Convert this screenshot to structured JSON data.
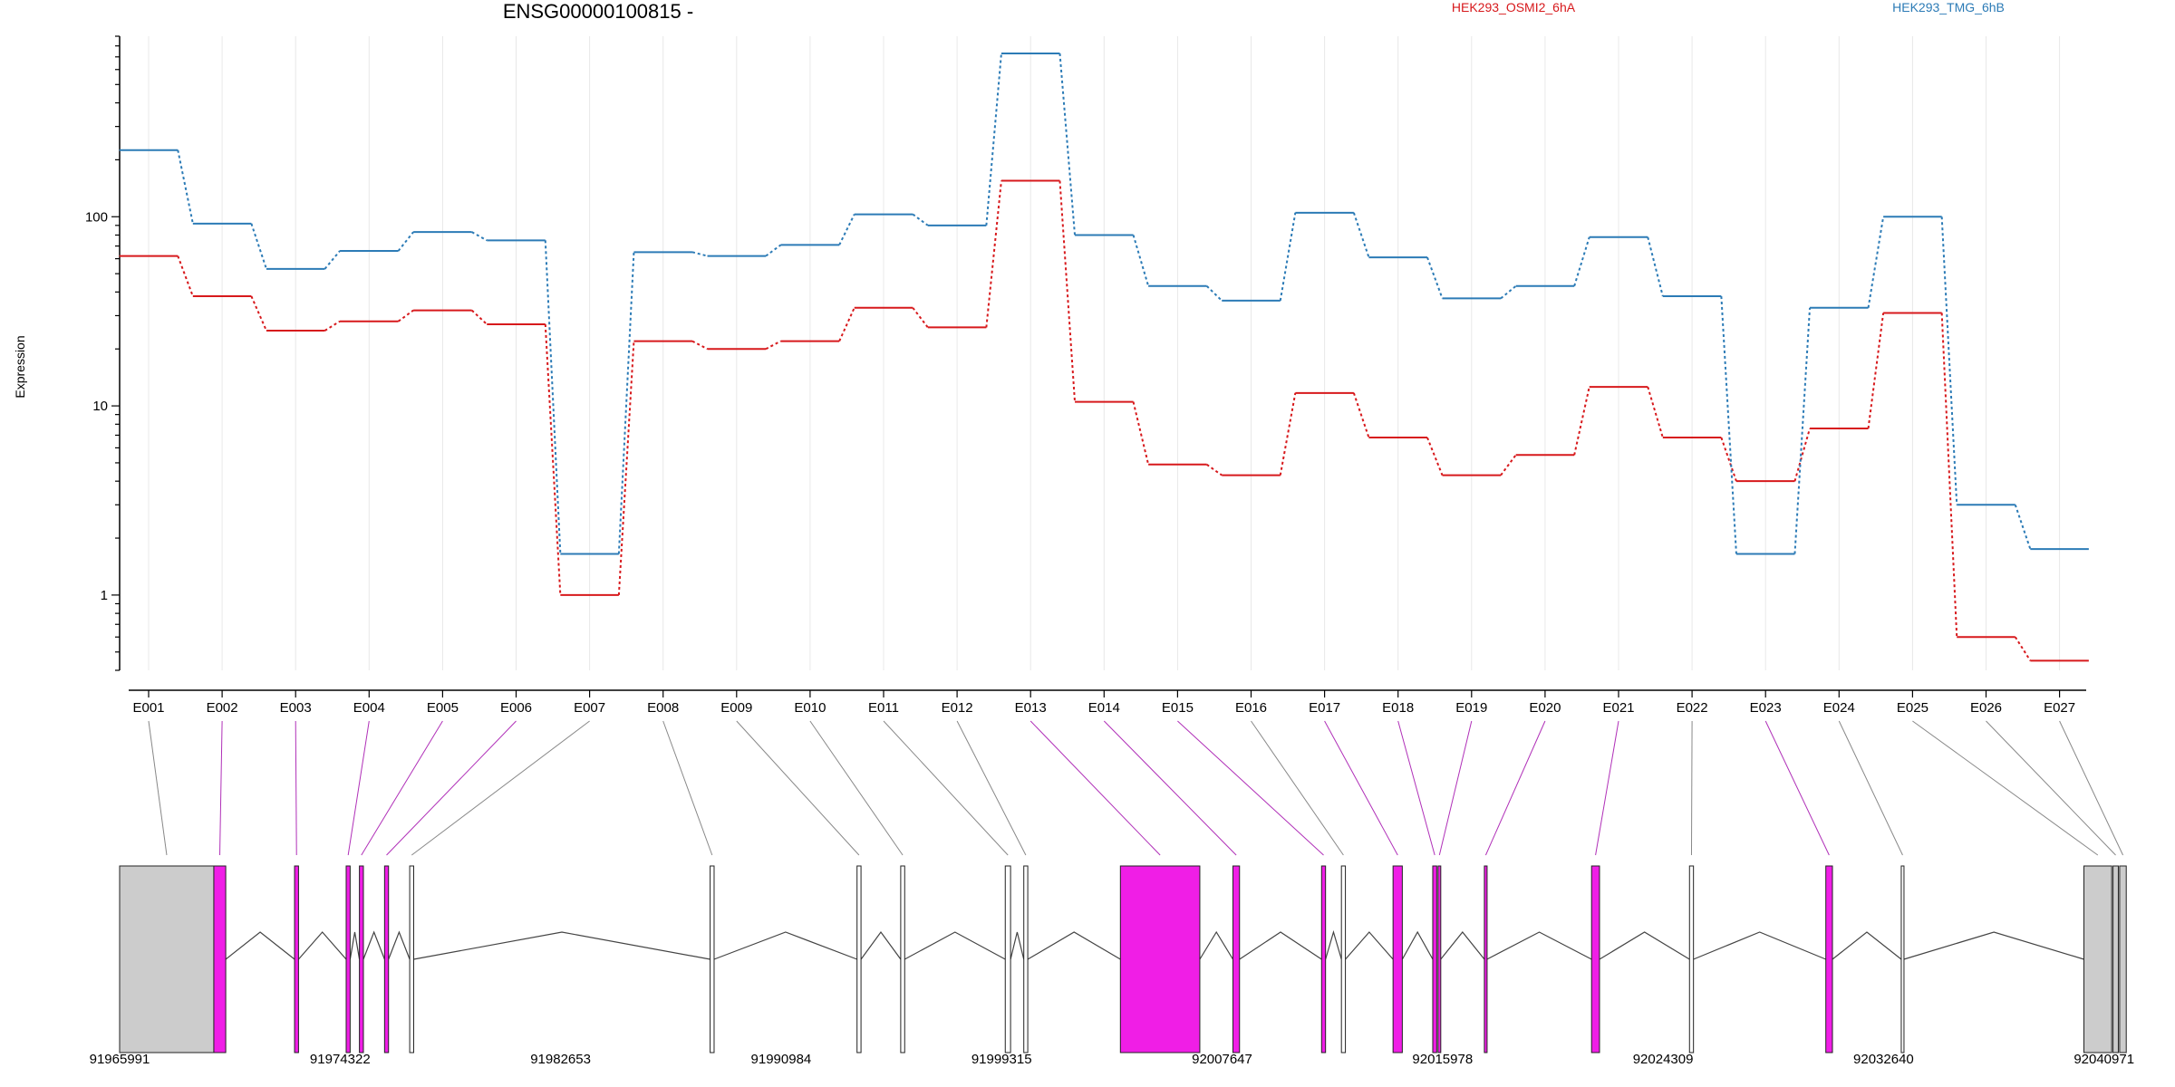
{
  "chart_data": {
    "type": "line",
    "title": "ENSG00000100815 -",
    "xlabel": "",
    "ylabel": "Expression",
    "y_scale": "log",
    "ylim": [
      0.4,
      900
    ],
    "y_ticks": [
      1,
      10,
      100
    ],
    "y_tick_labels": [
      "1",
      "10",
      "100"
    ],
    "categories": [
      "E001",
      "E002",
      "E003",
      "E004",
      "E005",
      "E006",
      "E007",
      "E008",
      "E009",
      "E010",
      "E011",
      "E012",
      "E013",
      "E014",
      "E015",
      "E016",
      "E017",
      "E018",
      "E019",
      "E020",
      "E021",
      "E022",
      "E023",
      "E024",
      "E025",
      "E026",
      "E027"
    ],
    "series": [
      {
        "name": "HEK293_OSMI2_6hA",
        "color": "#d7191c",
        "values": [
          62,
          38,
          25,
          28,
          32,
          27,
          1.0,
          22,
          20,
          22,
          33,
          26,
          155,
          10.5,
          4.9,
          4.3,
          11.7,
          6.8,
          4.3,
          5.5,
          12.6,
          6.8,
          4.0,
          7.6,
          31,
          0.6,
          0.45
        ]
      },
      {
        "name": "HEK293_TMG_6hB",
        "color": "#2c7bb6",
        "values": [
          225,
          92,
          53,
          66,
          83,
          75,
          1.65,
          65,
          62,
          71,
          103,
          90,
          730,
          80,
          43,
          36,
          105,
          61,
          37,
          43,
          78,
          38,
          1.65,
          33,
          100,
          3.0,
          1.75
        ]
      }
    ],
    "gene_model": {
      "coordinate_ticks": [
        "91965991",
        "91974322",
        "91982653",
        "91990984",
        "91999315",
        "92007647",
        "92015978",
        "92024309",
        "92032640",
        "92040971"
      ],
      "coord_min": 91965991,
      "coord_max": 92040971,
      "highlight_color": "#f01ee6",
      "utr_color": "#cccccc",
      "exons": [
        {
          "id": "E001",
          "start": 91965991,
          "end": 91969550,
          "kind": "utr"
        },
        {
          "id": "E002",
          "start": 91969550,
          "end": 91970000,
          "kind": "highlight"
        },
        {
          "id": "E003",
          "start": 91972600,
          "end": 91972750,
          "kind": "highlight"
        },
        {
          "id": "E004",
          "start": 91974550,
          "end": 91974700,
          "kind": "highlight"
        },
        {
          "id": "E005",
          "start": 91975050,
          "end": 91975200,
          "kind": "highlight"
        },
        {
          "id": "E006",
          "start": 91976000,
          "end": 91976150,
          "kind": "highlight"
        },
        {
          "id": "E007",
          "start": 91976950,
          "end": 91977100,
          "kind": "plain"
        },
        {
          "id": "E008",
          "start": 91988300,
          "end": 91988450,
          "kind": "plain"
        },
        {
          "id": "E009",
          "start": 91993850,
          "end": 91994000,
          "kind": "plain"
        },
        {
          "id": "E010",
          "start": 91995500,
          "end": 91995650,
          "kind": "plain"
        },
        {
          "id": "E011",
          "start": 91999450,
          "end": 91999650,
          "kind": "plain"
        },
        {
          "id": "E012",
          "start": 92000150,
          "end": 92000300,
          "kind": "plain"
        },
        {
          "id": "E013",
          "start": 92003800,
          "end": 92006800,
          "kind": "highlight"
        },
        {
          "id": "E014",
          "start": 92008050,
          "end": 92008300,
          "kind": "highlight"
        },
        {
          "id": "E015",
          "start": 92011400,
          "end": 92011550,
          "kind": "highlight"
        },
        {
          "id": "E016",
          "start": 92012150,
          "end": 92012300,
          "kind": "plain"
        },
        {
          "id": "E017",
          "start": 92014100,
          "end": 92014450,
          "kind": "highlight"
        },
        {
          "id": "E018",
          "start": 92015600,
          "end": 92015750,
          "kind": "highlight"
        },
        {
          "id": "E019",
          "start": 92015800,
          "end": 92015900,
          "kind": "highlight"
        },
        {
          "id": "E020",
          "start": 92017550,
          "end": 92017650,
          "kind": "highlight"
        },
        {
          "id": "E021",
          "start": 92021600,
          "end": 92021900,
          "kind": "highlight"
        },
        {
          "id": "E022",
          "start": 92025300,
          "end": 92025450,
          "kind": "plain"
        },
        {
          "id": "E023",
          "start": 92030450,
          "end": 92030700,
          "kind": "highlight"
        },
        {
          "id": "E024",
          "start": 92033300,
          "end": 92033400,
          "kind": "plain"
        },
        {
          "id": "E025",
          "start": 92040200,
          "end": 92041250,
          "kind": "utr"
        },
        {
          "id": "E026",
          "start": 92041300,
          "end": 92041500,
          "kind": "utr"
        },
        {
          "id": "E027",
          "start": 92041550,
          "end": 92041800,
          "kind": "utr"
        }
      ]
    }
  }
}
